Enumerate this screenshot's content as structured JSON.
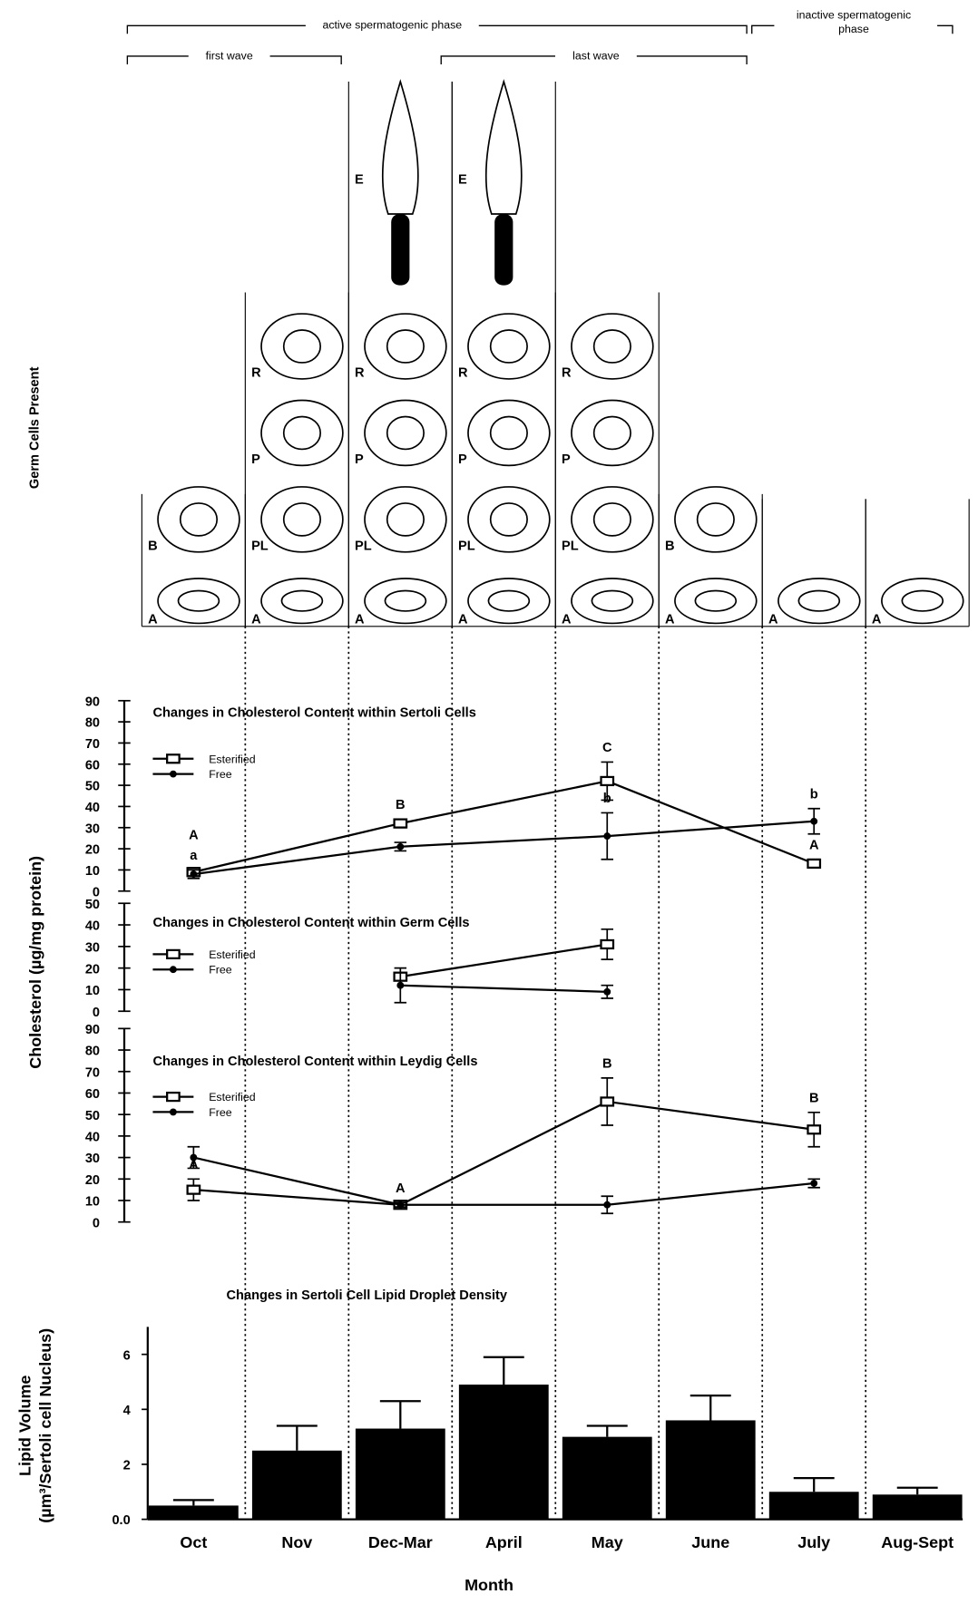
{
  "diagram": {
    "ylabel": "Germ Cells Present",
    "phases": {
      "active": "active spermatogenic phase",
      "inactive": [
        "inactive spermatogenic",
        "phase"
      ],
      "first_wave": "first wave",
      "last_wave": "last wave"
    },
    "columns": [
      [
        "B",
        "A"
      ],
      [
        "R",
        "P",
        "PL",
        "A"
      ],
      [
        "E",
        "R",
        "P",
        "PL",
        "A"
      ],
      [
        "E",
        "R",
        "P",
        "PL",
        "A"
      ],
      [
        "R",
        "P",
        "PL",
        "A"
      ],
      [
        "B",
        "A"
      ],
      [
        "A"
      ],
      [
        "A"
      ]
    ]
  },
  "cholesterol_ylabel": "Cholesterol  (µg/mg protein)",
  "chart_data": [
    {
      "type": "line",
      "title": "Changes in Cholesterol Content within Sertoli Cells",
      "ylim": [
        0,
        90
      ],
      "yticks": [
        0,
        10,
        20,
        30,
        40,
        50,
        60,
        70,
        80,
        90
      ],
      "series": [
        {
          "name": "Esterified",
          "color": "#000000",
          "marker": "square",
          "values": [
            9,
            null,
            32,
            null,
            52,
            null,
            13,
            null
          ],
          "errors": [
            2,
            null,
            2,
            null,
            9,
            null,
            2,
            null
          ],
          "labels": [
            "A",
            null,
            "B",
            null,
            "C",
            null,
            "A",
            null
          ]
        },
        {
          "name": "Free",
          "color": "#000000",
          "marker": "dot",
          "values": [
            8,
            null,
            21,
            null,
            26,
            null,
            33,
            null
          ],
          "errors": [
            2,
            null,
            2,
            null,
            11,
            null,
            6,
            null
          ],
          "labels": [
            "a",
            null,
            null,
            null,
            "b",
            null,
            "b",
            null
          ]
        }
      ]
    },
    {
      "type": "line",
      "title": "Changes in Cholesterol Content within Germ Cells",
      "ylim": [
        0,
        50
      ],
      "yticks": [
        0,
        10,
        20,
        30,
        40,
        50
      ],
      "series": [
        {
          "name": "Esterified",
          "color": "#000000",
          "marker": "square",
          "values": [
            null,
            null,
            16,
            null,
            31,
            null,
            null,
            null
          ],
          "errors": [
            null,
            null,
            1,
            null,
            7,
            null,
            null,
            null
          ]
        },
        {
          "name": "Free",
          "color": "#000000",
          "marker": "dot",
          "values": [
            null,
            null,
            12,
            null,
            9,
            null,
            null,
            null
          ],
          "errors": [
            null,
            null,
            8,
            null,
            3,
            null,
            null,
            null
          ]
        }
      ]
    },
    {
      "type": "line",
      "title": "Changes in Cholesterol Content within Leydig Cells",
      "ylim": [
        0,
        90
      ],
      "yticks": [
        0,
        10,
        20,
        30,
        40,
        50,
        60,
        70,
        80,
        90
      ],
      "series": [
        {
          "name": "Esterified",
          "color": "#000000",
          "marker": "square",
          "values": [
            15,
            null,
            8,
            null,
            56,
            null,
            43,
            null
          ],
          "errors": [
            5,
            null,
            1,
            null,
            11,
            null,
            8,
            null
          ],
          "labels": [
            "A",
            null,
            "A",
            null,
            "B",
            null,
            "B",
            null
          ]
        },
        {
          "name": "Free",
          "color": "#000000",
          "marker": "dot",
          "values": [
            30,
            null,
            8,
            null,
            8,
            null,
            18,
            null
          ],
          "errors": [
            5,
            null,
            1,
            null,
            4,
            null,
            2,
            null
          ]
        }
      ]
    },
    {
      "type": "bar",
      "title": "Changes in Sertoli Cell Lipid Droplet Density",
      "categories": [
        "Oct",
        "Nov",
        "Dec-Mar",
        "April",
        "May",
        "June",
        "July",
        "Aug-Sept"
      ],
      "values": [
        0.5,
        2.5,
        3.3,
        4.9,
        3.0,
        3.6,
        1.0,
        0.9
      ],
      "errors": [
        0.2,
        0.9,
        1.0,
        1.0,
        0.4,
        0.9,
        0.5,
        0.25
      ],
      "color": "#000000",
      "ylim": [
        0,
        7
      ],
      "yticks": [
        {
          "value": 0,
          "label": "0.0"
        },
        2,
        4,
        6
      ],
      "ylabel": [
        "Lipid Volume",
        "(µm³/Sertoli cell Nucleus)"
      ],
      "xlabel": "Month"
    }
  ]
}
